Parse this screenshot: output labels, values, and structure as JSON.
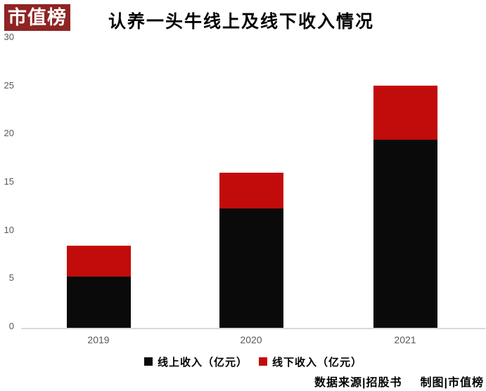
{
  "logo": {
    "text": "市值榜",
    "bg_color": "#8F2423"
  },
  "chart_data": {
    "type": "bar",
    "stacked": true,
    "title": "认养一头牛线上及线下收入情况",
    "categories": [
      "2019",
      "2020",
      "2021"
    ],
    "series": [
      {
        "name": "线上收入（亿元）",
        "color": "#0A0A0A",
        "values": [
          5.3,
          12.4,
          19.5
        ]
      },
      {
        "name": "线下收入（亿元）",
        "color": "#C20B0B",
        "values": [
          3.2,
          3.7,
          5.6
        ]
      }
    ],
    "xlabel": "",
    "ylabel": "",
    "ylim": [
      0,
      30
    ],
    "yticks": [
      0,
      5,
      10,
      15,
      20,
      25,
      30
    ],
    "grid": false,
    "legend_position": "bottom",
    "tick_color": "#595959",
    "axis_color": "#D9D9D9"
  },
  "source_note": {
    "left": "数据来源|招股书",
    "right": "制图|市值榜"
  }
}
